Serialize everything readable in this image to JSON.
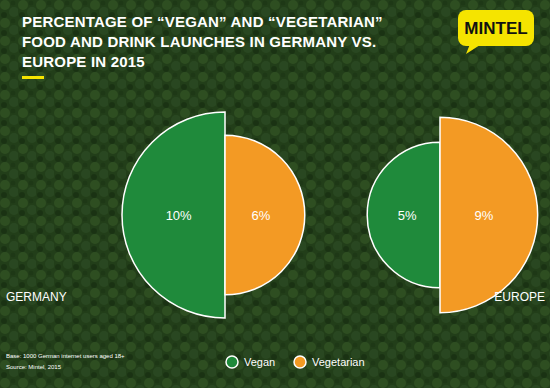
{
  "chart_data": {
    "type": "pie",
    "title": "PERCENTAGE OF “VEGAN” AND “VEGETARIAN” FOOD AND DRINK LAUNCHES IN GERMANY VS. EUROPE IN 2015",
    "logo": "MINTEL",
    "categories": [
      "GERMANY",
      "EUROPE"
    ],
    "series": [
      {
        "name": "Vegan",
        "color": "#1f8a3b",
        "values": [
          10,
          5
        ],
        "value_labels": [
          "10%",
          "5%"
        ]
      },
      {
        "name": "Vegetarian",
        "color": "#f39a24",
        "values": [
          6,
          9
        ],
        "value_labels": [
          "6%",
          "9%"
        ]
      }
    ],
    "data_labels": true,
    "legend": "bottom",
    "notes": [
      "Base: 1000 German internet users aged 18+",
      "Source: Mintel, 2015"
    ]
  }
}
